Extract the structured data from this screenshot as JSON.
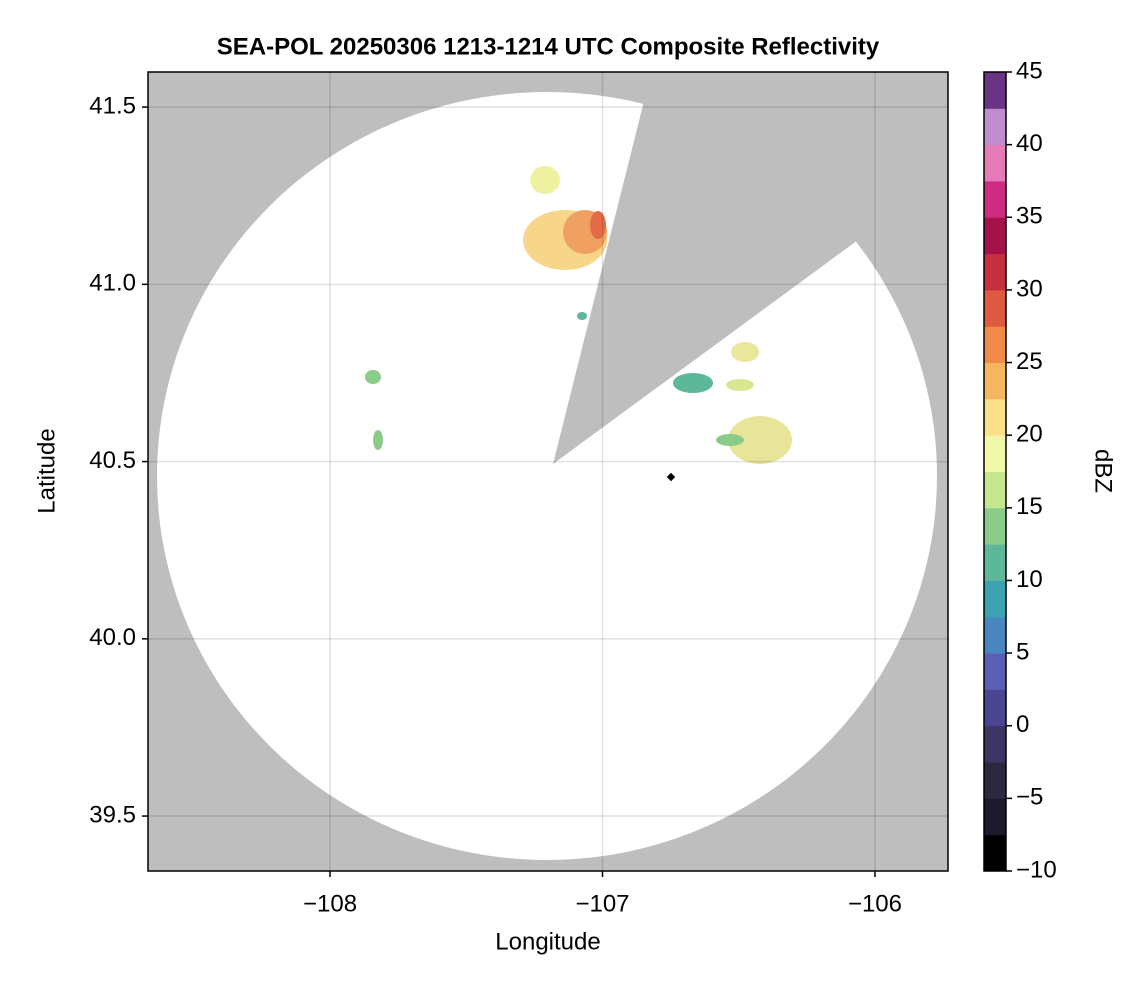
{
  "chart_data": {
    "type": "radar-map",
    "title": "SEA-POL 20250306 1213-1214 UTC Composite Reflectivity",
    "xlabel": "Longitude",
    "ylabel": "Latitude",
    "xlim": [
      -108.668,
      -105.732
    ],
    "ylim": [
      39.345,
      41.599
    ],
    "xticks": [
      {
        "value": -108,
        "label": "−108"
      },
      {
        "value": -107,
        "label": "−107"
      },
      {
        "value": -106,
        "label": "−106"
      }
    ],
    "yticks": [
      39.5,
      {
        "value": 40,
        "label": "40.0"
      },
      40.5,
      {
        "value": 41,
        "label": "41.0"
      },
      41.5
    ],
    "grid": true,
    "colorbar": {
      "label": "dBZ",
      "lim": [
        -10,
        45
      ],
      "ticks": [
        {
          "value": -10,
          "label": "−10"
        },
        {
          "value": -5,
          "label": "−5"
        },
        0,
        5,
        10,
        15,
        20,
        25,
        30,
        35,
        40,
        45
      ],
      "colors": [
        "#000000",
        "#1c1a2a",
        "#2b2940",
        "#3b3563",
        "#4a4590",
        "#5a5fb5",
        "#4a86c0",
        "#3ea3b0",
        "#5db89a",
        "#8ccc8a",
        "#c4e68e",
        "#f1f7a8",
        "#fbe08c",
        "#f5b660",
        "#ef8a48",
        "#e05a42",
        "#c7303e",
        "#a5124a",
        "#cf2a80",
        "#e47ab6",
        "#c08ccd",
        "#6a3585"
      ]
    }
  }
}
